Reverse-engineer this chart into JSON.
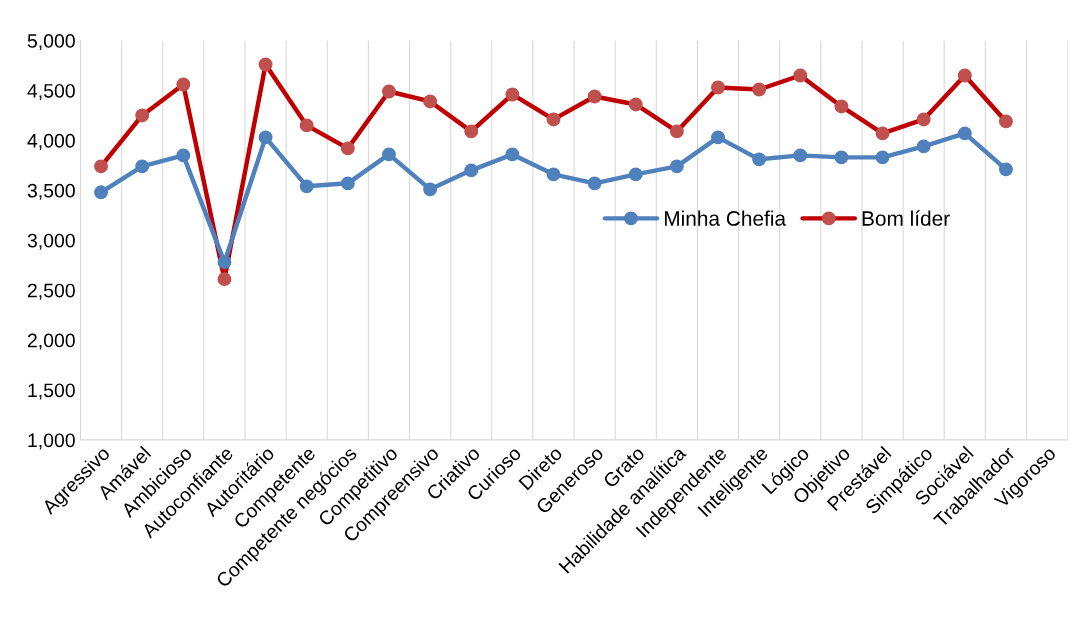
{
  "chart_data": {
    "type": "line",
    "categories": [
      "Agressivo",
      "Amável",
      "Ambicioso",
      "Autoconfiante",
      "Autoritário",
      "Competente",
      "Competente negócios",
      "Competitivo",
      "Compreensivo",
      "Criativo",
      "Curioso",
      "Direto",
      "Generoso",
      "Grato",
      "Habilidade analítica",
      "Independente",
      "Inteligente",
      "Lógico",
      "Objetivo",
      "Prestável",
      "Simpático",
      "Sociável",
      "Trabalhador",
      "Vigoroso"
    ],
    "series": [
      {
        "name": "Minha Chefia",
        "color": "#4f81bd",
        "values": [
          3480,
          3740,
          3850,
          2780,
          4030,
          3540,
          3570,
          3860,
          3510,
          3700,
          3860,
          3660,
          3570,
          3660,
          3740,
          4030,
          3810,
          3850,
          3830,
          3830,
          3940,
          4070,
          3710,
          null
        ]
      },
      {
        "name": "Bom líder",
        "color": "#c00000",
        "values": [
          3740,
          4250,
          4560,
          2610,
          4760,
          4150,
          3920,
          4490,
          4390,
          4090,
          4460,
          4210,
          4440,
          4360,
          4090,
          4530,
          4510,
          4650,
          4340,
          4070,
          4210,
          4650,
          4190,
          null
        ]
      }
    ],
    "ylim": [
      1000,
      5000
    ],
    "yticks": [
      {
        "value": 1000,
        "label": "1,000"
      },
      {
        "value": 1500,
        "label": "1,500"
      },
      {
        "value": 2000,
        "label": "2,000"
      },
      {
        "value": 2500,
        "label": "2,500"
      },
      {
        "value": 3000,
        "label": "3,000"
      },
      {
        "value": 3500,
        "label": "3,500"
      },
      {
        "value": 4000,
        "label": "4,000"
      },
      {
        "value": 4500,
        "label": "4,500"
      },
      {
        "value": 5000,
        "label": "5,000"
      }
    ],
    "grid": "x",
    "legend": "right",
    "marker": "circle",
    "line_style": "solid"
  }
}
